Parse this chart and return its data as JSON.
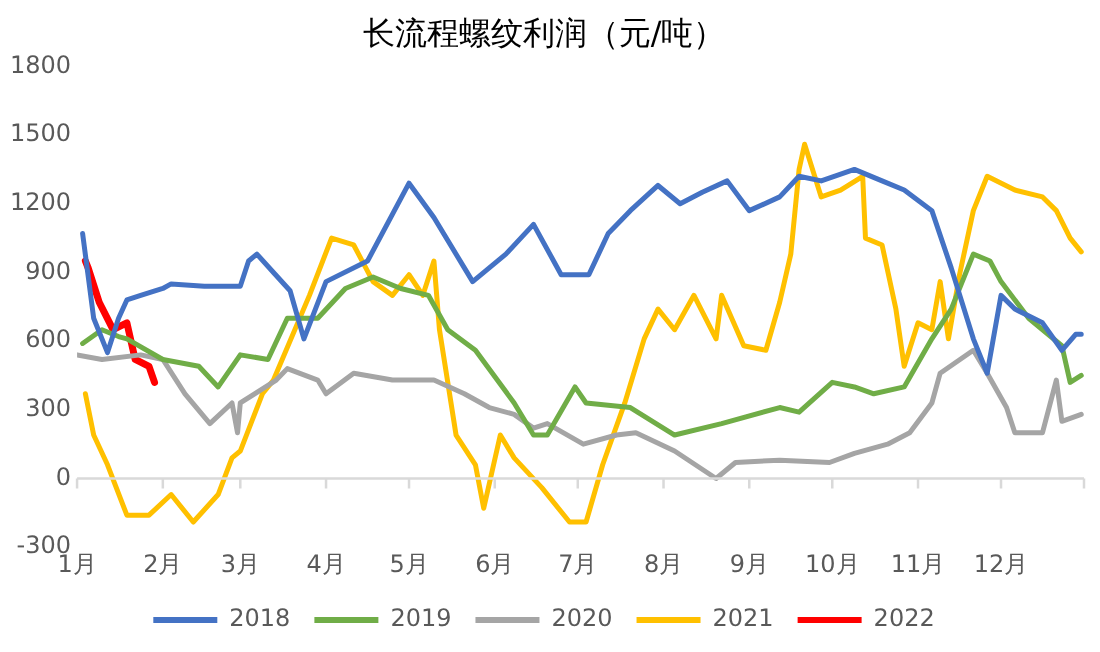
{
  "chart_data": {
    "type": "line",
    "title": "长流程螺纹利润（元/吨）",
    "xlim": [
      "--01-01",
      "--12-31"
    ],
    "xticks": [
      {
        "value": "--01-01",
        "label": "1月"
      },
      {
        "value": "--02-01",
        "label": "2月"
      },
      {
        "value": "--03-01",
        "label": "3月"
      },
      {
        "value": "--04-01",
        "label": "4月"
      },
      {
        "value": "--05-01",
        "label": "5月"
      },
      {
        "value": "--06-01",
        "label": "6月"
      },
      {
        "value": "--07-01",
        "label": "7月"
      },
      {
        "value": "--08-01",
        "label": "8月"
      },
      {
        "value": "--09-01",
        "label": "9月"
      },
      {
        "value": "--10-01",
        "label": "10月"
      },
      {
        "value": "--11-01",
        "label": "11月"
      },
      {
        "value": "--12-01",
        "label": "12月"
      }
    ],
    "ylim": [
      -300,
      1800
    ],
    "yticks": [
      -300,
      0,
      300,
      600,
      900,
      1200,
      1500,
      1800
    ],
    "grid": false,
    "ref_lines": [
      {
        "axis": "y",
        "value": 0,
        "color": "#d9d9d9"
      }
    ],
    "legend": "bottom",
    "marker": "none",
    "line_style": "solid",
    "series": [
      {
        "name": "2018",
        "color": "#4472c4",
        "x": [
          "--01-03",
          "--01-07",
          "--01-12",
          "--01-16",
          "--01-19",
          "--01-24",
          "--02-01",
          "--02-04",
          "--02-16",
          "--03-01",
          "--03-04",
          "--03-07",
          "--03-13",
          "--03-19",
          "--03-24",
          "--04-01",
          "--04-16",
          "--05-01",
          "--05-10",
          "--05-21",
          "--05-24",
          "--06-05",
          "--06-15",
          "--06-25",
          "--07-05",
          "--07-12",
          "--07-20",
          "--07-30",
          "--08-07",
          "--08-15",
          "--08-24",
          "--09-01",
          "--09-12",
          "--09-19",
          "--09-27",
          "--10-09",
          "--10-19",
          "--10-27",
          "--11-06",
          "--11-13",
          "--11-21",
          "--11-26",
          "--12-01",
          "--12-06",
          "--12-16",
          "--12-23",
          "--12-28",
          "--12-30"
        ],
        "values": [
          1070,
          700,
          550,
          700,
          780,
          800,
          830,
          850,
          840,
          840,
          950,
          980,
          900,
          820,
          610,
          860,
          950,
          1290,
          1140,
          920,
          860,
          980,
          1110,
          890,
          890,
          1070,
          1170,
          1280,
          1200,
          1250,
          1300,
          1170,
          1230,
          1320,
          1300,
          1350,
          1300,
          1260,
          1170,
          920,
          610,
          460,
          800,
          740,
          680,
          560,
          630,
          630
        ]
      },
      {
        "name": "2019",
        "color": "#70ad47",
        "x": [
          "--01-03",
          "--01-10",
          "--01-16",
          "--01-19",
          "--02-01",
          "--02-14",
          "--02-21",
          "--03-01",
          "--03-11",
          "--03-18",
          "--03-29",
          "--04-08",
          "--04-18",
          "--04-28",
          "--05-08",
          "--05-15",
          "--05-25",
          "--06-08",
          "--06-15",
          "--06-20",
          "--06-30",
          "--07-04",
          "--07-20",
          "--08-05",
          "--08-22",
          "--09-12",
          "--09-19",
          "--10-01",
          "--10-09",
          "--10-16",
          "--10-27",
          "--11-06",
          "--11-13",
          "--11-21",
          "--11-27",
          "--12-01",
          "--12-11",
          "--12-23",
          "--12-26",
          "--12-30"
        ],
        "values": [
          590,
          650,
          620,
          610,
          520,
          490,
          400,
          540,
          520,
          700,
          700,
          830,
          880,
          830,
          800,
          650,
          560,
          330,
          190,
          190,
          400,
          330,
          310,
          190,
          240,
          310,
          290,
          420,
          400,
          370,
          400,
          610,
          740,
          980,
          950,
          860,
          700,
          580,
          420,
          450
        ]
      },
      {
        "name": "2020",
        "color": "#a5a5a5",
        "x": [
          "--01-01",
          "--01-10",
          "--01-24",
          "--02-01",
          "--02-09",
          "--02-18",
          "--02-26",
          "--02-28",
          "--03-01",
          "--03-14",
          "--03-18",
          "--03-29",
          "--04-01",
          "--04-11",
          "--04-25",
          "--05-10",
          "--05-21",
          "--05-30",
          "--06-08",
          "--06-15",
          "--06-20",
          "--07-03",
          "--07-15",
          "--07-22",
          "--08-05",
          "--08-20",
          "--08-27",
          "--09-12",
          "--09-30",
          "--10-09",
          "--10-21",
          "--10-29",
          "--11-06",
          "--11-09",
          "--11-21",
          "--11-26",
          "--12-03",
          "--12-06",
          "--12-16",
          "--12-21",
          "--12-23",
          "--12-30"
        ],
        "values": [
          540,
          520,
          540,
          520,
          370,
          240,
          330,
          200,
          330,
          430,
          480,
          430,
          370,
          460,
          430,
          430,
          370,
          310,
          280,
          220,
          240,
          150,
          190,
          200,
          120,
          0,
          70,
          80,
          70,
          110,
          150,
          200,
          330,
          460,
          560,
          460,
          310,
          200,
          200,
          430,
          250,
          280
        ]
      },
      {
        "name": "2021",
        "color": "#ffc000",
        "x": [
          "--01-04",
          "--01-07",
          "--01-12",
          "--01-19",
          "--01-27",
          "--02-04",
          "--02-12",
          "--02-21",
          "--02-26",
          "--03-01",
          "--03-09",
          "--03-13",
          "--03-26",
          "--04-03",
          "--04-11",
          "--04-18",
          "--04-25",
          "--05-01",
          "--05-06",
          "--05-10",
          "--05-12",
          "--05-18",
          "--05-25",
          "--05-28",
          "--06-03",
          "--06-08",
          "--06-18",
          "--06-28",
          "--07-04",
          "--07-10",
          "--07-18",
          "--07-25",
          "--07-30",
          "--08-05",
          "--08-12",
          "--08-20",
          "--08-22",
          "--08-30",
          "--09-07",
          "--09-12",
          "--09-16",
          "--09-19",
          "--09-21",
          "--09-27",
          "--10-04",
          "--10-12",
          "--10-13",
          "--10-19",
          "--10-24",
          "--10-27",
          "--11-01",
          "--11-06",
          "--11-09",
          "--11-12",
          "--11-16",
          "--11-21",
          "--11-26",
          "--12-06",
          "--12-16",
          "--12-21",
          "--12-26",
          "--12-30"
        ],
        "values": [
          370,
          190,
          60,
          -160,
          -160,
          -70,
          -190,
          -70,
          90,
          120,
          370,
          430,
          800,
          1050,
          1020,
          860,
          800,
          890,
          800,
          950,
          650,
          190,
          60,
          -130,
          190,
          90,
          -40,
          -190,
          -190,
          60,
          330,
          610,
          740,
          650,
          800,
          610,
          800,
          580,
          560,
          770,
          980,
          1350,
          1460,
          1230,
          1260,
          1320,
          1050,
          1020,
          740,
          490,
          680,
          650,
          860,
          610,
          890,
          1170,
          1320,
          1260,
          1230,
          1170,
          1050,
          990
        ]
      },
      {
        "name": "2022",
        "color": "#ff0000",
        "x": [
          "--01-04",
          "--01-05",
          "--01-09",
          "--01-14",
          "--01-19",
          "--01-22",
          "--01-27",
          "--01-29"
        ],
        "values": [
          950,
          920,
          770,
          650,
          680,
          520,
          490,
          420
        ]
      }
    ]
  }
}
